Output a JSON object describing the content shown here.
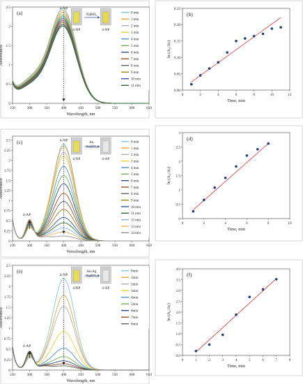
{
  "chart_data": [
    {
      "id": "a",
      "panel_label": "(a)",
      "type": "line",
      "xlabel": "Wavelength, nm",
      "ylabel": "Absorbance",
      "xlim": [
        250,
        650
      ],
      "ylim": [
        0,
        2.5
      ],
      "xticks": [
        250,
        300,
        350,
        400,
        450,
        500,
        550,
        600,
        650
      ],
      "yticks": [
        0,
        0.5,
        1,
        1.5,
        2,
        2.5
      ],
      "ytick_labels": [
        "0",
        "0.5",
        "1",
        "1.5",
        "2",
        "2.5"
      ],
      "peaks": [
        {
          "x": 400,
          "y": 2.38,
          "label": "4-NP",
          "arrow_to": 0.05
        }
      ],
      "inset": {
        "reagent": "NaBH₄",
        "left_label": "4-NP",
        "right_label": "4-NP",
        "left_color": "#e6dc5a",
        "right_color": "#e6d850"
      },
      "legend": {
        "placement": "right"
      },
      "series": [
        {
          "name": "0 min",
          "color": "#7cc8e8",
          "peak_abs": 2.38,
          "base": 0.85
        },
        {
          "name": "1 min",
          "color": "#f0a030",
          "peak_abs": 2.33,
          "base": 0.82
        },
        {
          "name": "2 min",
          "color": "#b0b0b0",
          "peak_abs": 2.28,
          "base": 0.8
        },
        {
          "name": "3 min",
          "color": "#f2d030",
          "peak_abs": 2.24,
          "base": 0.78
        },
        {
          "name": "4 min",
          "color": "#4a90d0",
          "peak_abs": 2.2,
          "base": 0.76
        },
        {
          "name": "5 min",
          "color": "#70b050",
          "peak_abs": 2.16,
          "base": 0.74
        },
        {
          "name": "6 min",
          "color": "#2a4a8a",
          "peak_abs": 2.12,
          "base": 0.72
        },
        {
          "name": "7 min",
          "color": "#a05020",
          "peak_abs": 2.08,
          "base": 0.7
        },
        {
          "name": "8 min",
          "color": "#606060",
          "peak_abs": 2.04,
          "base": 0.68
        },
        {
          "name": "9 min",
          "color": "#a08010",
          "peak_abs": 2.0,
          "base": 0.66
        },
        {
          "name": "10 min",
          "color": "#3050a0",
          "peak_abs": 1.97,
          "base": 0.64
        },
        {
          "name": "11 min",
          "color": "#2a6a30",
          "peak_abs": 1.94,
          "base": 0.62
        }
      ]
    },
    {
      "id": "b",
      "panel_label": "(b)",
      "type": "scatter",
      "xlabel": "Time, min",
      "ylabel": "ln (A₀/Aₜ)",
      "xlim": [
        0,
        12
      ],
      "ylim": [
        0,
        0.25
      ],
      "xticks": [
        0,
        2,
        4,
        6,
        8,
        10,
        12
      ],
      "yticks": [
        0,
        0.05,
        0.1,
        0.15,
        0.2,
        0.25
      ],
      "ytick_labels": [
        "0.00",
        "0.05",
        "0.10",
        "0.15",
        "0.20",
        "0.25"
      ],
      "x": [
        1,
        2,
        3,
        4,
        5,
        6,
        7,
        8,
        9,
        10,
        11
      ],
      "y": [
        0.018,
        0.045,
        0.066,
        0.085,
        0.115,
        0.15,
        0.158,
        0.165,
        0.172,
        0.188,
        0.192
      ],
      "fit": {
        "x": [
          1,
          11
        ],
        "y": [
          0.025,
          0.222
        ],
        "color": "#e03030"
      }
    },
    {
      "id": "c",
      "panel_label": "(c)",
      "type": "line",
      "xlabel": "Wavelength, nm",
      "ylabel": "Absorbance",
      "xlim": [
        250,
        650
      ],
      "ylim": [
        0,
        2.6
      ],
      "xticks": [
        250,
        300,
        350,
        400,
        450,
        500,
        550,
        600,
        650
      ],
      "yticks": [
        0,
        0.25,
        0.5,
        0.75,
        1,
        1.25,
        1.5,
        1.75,
        2,
        2.25,
        2.5
      ],
      "ytick_labels": [
        "0",
        "0.25",
        "0.5",
        "0.75",
        "1",
        "1.25",
        "1.5",
        "1.75",
        "2",
        "2.25",
        "2.5"
      ],
      "peaks": [
        {
          "x": 400,
          "y": 2.42,
          "label": "4-NP",
          "arrow_to": 0.18
        },
        {
          "x": 300,
          "y": 0.52,
          "label": "4-AP",
          "arrow_from": 0.3
        }
      ],
      "inset": {
        "reagent": "Au\nNaBH₄",
        "left_label": "4-NP",
        "right_label": "4-AP",
        "left_color": "#e6dc5a",
        "right_color": "#e8e8e8"
      },
      "legend": {
        "placement": "right"
      },
      "series": [
        {
          "name": "0 min",
          "color": "#7cc8e8",
          "peak_abs": 2.4,
          "ap_abs": 0.3
        },
        {
          "name": "1 min",
          "color": "#f0a030",
          "peak_abs": 2.35,
          "ap_abs": 0.31
        },
        {
          "name": "2 min",
          "color": "#b0b0b0",
          "peak_abs": 2.2,
          "ap_abs": 0.33
        },
        {
          "name": "3 min",
          "color": "#f2d030",
          "peak_abs": 2.1,
          "ap_abs": 0.34
        },
        {
          "name": "4 min",
          "color": "#4a90d0",
          "peak_abs": 1.85,
          "ap_abs": 0.36
        },
        {
          "name": "5 min",
          "color": "#70b050",
          "peak_abs": 1.62,
          "ap_abs": 0.38
        },
        {
          "name": "6 min",
          "color": "#2a4a8a",
          "peak_abs": 1.42,
          "ap_abs": 0.4
        },
        {
          "name": "7 min",
          "color": "#a05020",
          "peak_abs": 1.18,
          "ap_abs": 0.42
        },
        {
          "name": "8 min",
          "color": "#606060",
          "peak_abs": 0.98,
          "ap_abs": 0.44
        },
        {
          "name": "9 min",
          "color": "#a08010",
          "peak_abs": 0.78,
          "ap_abs": 0.46
        },
        {
          "name": "10 min",
          "color": "#3050a0",
          "peak_abs": 0.58,
          "ap_abs": 0.47
        },
        {
          "name": "11 min",
          "color": "#2a6a30",
          "peak_abs": 0.45,
          "ap_abs": 0.48
        },
        {
          "name": "12 min",
          "color": "#8ab0e0",
          "peak_abs": 0.32,
          "ap_abs": 0.49
        },
        {
          "name": "13 min",
          "color": "#f0b060",
          "peak_abs": 0.22,
          "ap_abs": 0.5
        },
        {
          "name": "14 min",
          "color": "#909090",
          "peak_abs": 0.12,
          "ap_abs": 0.52
        }
      ]
    },
    {
      "id": "d",
      "panel_label": "(d)",
      "type": "scatter",
      "xlabel": "Time, min",
      "ylabel": "ln (A₀/Aₜ)",
      "xlim": [
        0,
        10
      ],
      "ylim": [
        0,
        3
      ],
      "xticks": [
        0,
        2,
        4,
        6,
        8,
        10
      ],
      "yticks": [
        0,
        0.5,
        1,
        1.5,
        2,
        2.5,
        3
      ],
      "ytick_labels": [
        "0",
        "0.5",
        "1",
        "1.5",
        "2",
        "2.5",
        "3"
      ],
      "x": [
        1,
        2,
        3,
        4,
        5,
        6,
        7,
        8
      ],
      "y": [
        0.25,
        0.65,
        1.08,
        1.42,
        1.82,
        2.2,
        2.42,
        2.62
      ],
      "fit": {
        "x": [
          1,
          8
        ],
        "y": [
          0.3,
          2.62
        ],
        "color": "#e03030"
      }
    },
    {
      "id": "e",
      "panel_label": "(e)",
      "type": "line",
      "xlabel": "Wavelength, nm",
      "ylabel": "Absorbance",
      "xlim": [
        250,
        650
      ],
      "ylim": [
        0,
        2.5
      ],
      "xticks": [
        250,
        300,
        350,
        400,
        450,
        500,
        550,
        600,
        650
      ],
      "yticks": [
        0,
        0.25,
        0.5,
        0.75,
        1,
        1.25,
        1.5,
        1.75,
        2,
        2.25,
        2.5
      ],
      "ytick_labels": [
        "0",
        "0.25",
        "0.5",
        "0.75",
        "1",
        "1.25",
        "1.5",
        "1.75",
        "2",
        "2.25",
        "2.5"
      ],
      "peaks": [
        {
          "x": 400,
          "y": 2.2,
          "label": "4-NP",
          "arrow_to": 0.12
        },
        {
          "x": 300,
          "y": 0.45,
          "label": "4-AP",
          "arrow_from": 0.28
        }
      ],
      "inset": {
        "reagent": "Au-Ag\nNaBH₄",
        "left_label": "4-NP",
        "right_label": "4-AP",
        "left_color": "#e6dc5a",
        "right_color": "#e8e8e8"
      },
      "legend": {
        "placement": "right"
      },
      "series": [
        {
          "name": "0min",
          "color": "#7cc8e8",
          "peak_abs": 2.18,
          "ap_abs": 0.28
        },
        {
          "name": "1min",
          "color": "#f0a030",
          "peak_abs": 1.78,
          "ap_abs": 0.3
        },
        {
          "name": "2min",
          "color": "#b0b0b0",
          "peak_abs": 1.52,
          "ap_abs": 0.32
        },
        {
          "name": "3min",
          "color": "#f2d030",
          "peak_abs": 0.92,
          "ap_abs": 0.34
        },
        {
          "name": "4min",
          "color": "#4a90d0",
          "peak_abs": 0.52,
          "ap_abs": 0.36
        },
        {
          "name": "5min",
          "color": "#70b050",
          "peak_abs": 0.32,
          "ap_abs": 0.38
        },
        {
          "name": "6min",
          "color": "#2a4a8a",
          "peak_abs": 0.22,
          "ap_abs": 0.4
        },
        {
          "name": "7min",
          "color": "#a05020",
          "peak_abs": 0.15,
          "ap_abs": 0.42
        },
        {
          "name": "8min",
          "color": "#606060",
          "peak_abs": 0.1,
          "ap_abs": 0.44
        }
      ]
    },
    {
      "id": "f",
      "panel_label": "(f)",
      "type": "scatter",
      "xlabel": "Time, min",
      "ylabel": "ln (A₀/Aₜ)",
      "xlim": [
        0,
        8
      ],
      "ylim": [
        0,
        4
      ],
      "xticks": [
        0,
        1,
        2,
        3,
        4,
        5,
        6,
        7,
        8
      ],
      "yticks": [
        0,
        0.5,
        1,
        1.5,
        2,
        2.5,
        3,
        3.5,
        4
      ],
      "ytick_labels": [
        "0.0",
        "0.5",
        "1.0",
        "1.5",
        "2.0",
        "2.5",
        "3.0",
        "3.5",
        "4.0"
      ],
      "x": [
        1,
        2,
        3,
        4,
        5,
        6,
        7
      ],
      "y": [
        0.2,
        0.5,
        0.95,
        1.88,
        2.7,
        3.05,
        3.52
      ],
      "fit": {
        "x": [
          1,
          7
        ],
        "y": [
          0.15,
          3.55
        ],
        "color": "#e03030"
      }
    }
  ]
}
